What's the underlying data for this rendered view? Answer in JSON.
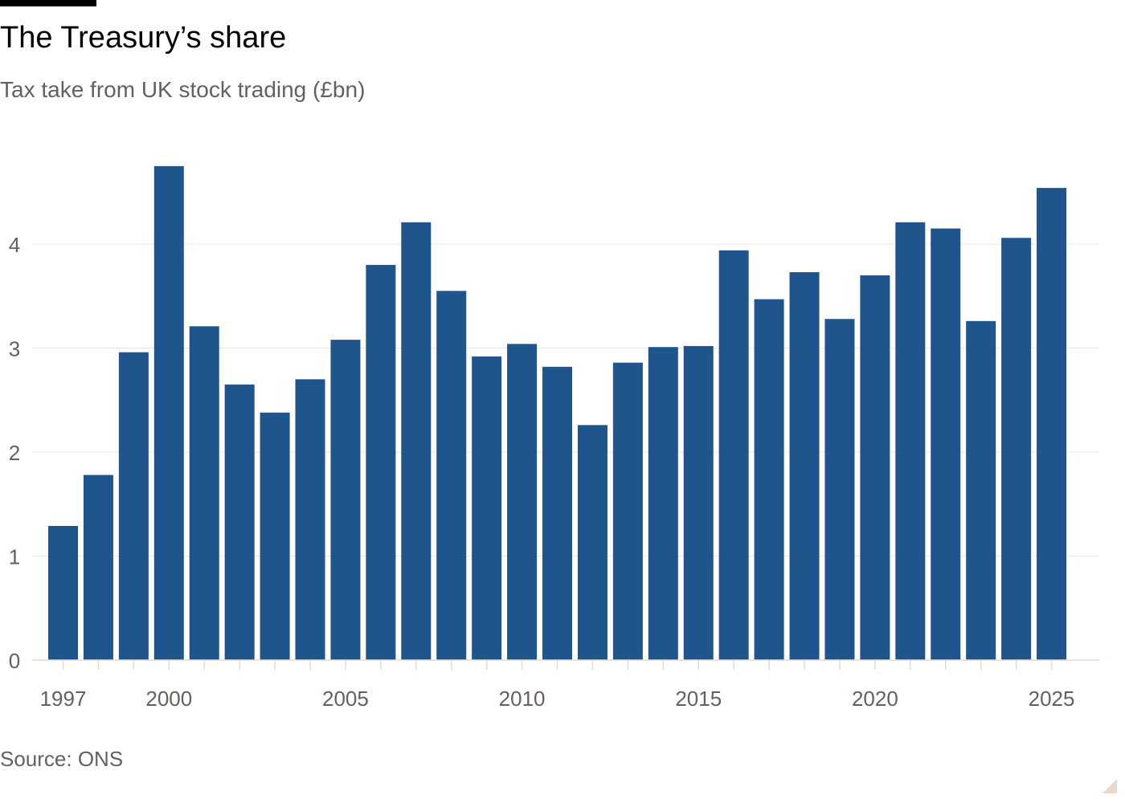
{
  "title": "The Treasury’s share",
  "subtitle": "Tax take from UK stock trading (£bn)",
  "source": "Source: ONS",
  "colors": {
    "bar": "#1f558c",
    "grid": "#ebe6e1",
    "tick_text": "#66605c",
    "axis": "#e2dcd6"
  },
  "chart_data": {
    "type": "bar",
    "title": "The Treasury’s share",
    "subtitle": "Tax take from UK stock trading (£bn)",
    "xlabel": "",
    "ylabel": "",
    "ylim": [
      0,
      5
    ],
    "yticks": [
      0,
      1,
      2,
      3,
      4
    ],
    "x_tick_labels": [
      1997,
      2000,
      2005,
      2010,
      2015,
      2020,
      2025
    ],
    "grid": true,
    "categories": [
      1997,
      1998,
      1999,
      2000,
      2001,
      2002,
      2003,
      2004,
      2005,
      2006,
      2007,
      2008,
      2009,
      2010,
      2011,
      2012,
      2013,
      2014,
      2015,
      2016,
      2017,
      2018,
      2019,
      2020,
      2021,
      2022,
      2023,
      2024,
      2025
    ],
    "values": [
      1.29,
      1.78,
      2.96,
      4.75,
      3.21,
      2.65,
      2.38,
      2.7,
      3.08,
      3.8,
      4.21,
      3.55,
      2.92,
      3.04,
      2.82,
      2.26,
      2.86,
      3.01,
      3.02,
      3.94,
      3.47,
      3.73,
      3.28,
      3.7,
      4.21,
      4.15,
      3.26,
      4.06,
      4.54
    ]
  }
}
